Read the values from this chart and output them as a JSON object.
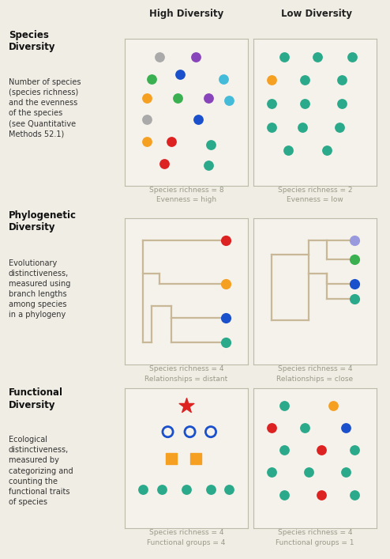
{
  "bg_color": "#f0ede4",
  "box_color": "#f5f2eb",
  "box_edge_color": "#bbbbaa",
  "header_high": "High Diversity",
  "header_low": "Low Diversity",
  "header_color": "#222222",
  "row1_title": "Species\nDiversity",
  "row1_desc": "Number of species\n(species richness)\nand the evenness\nof the species\n(see Quantitative\nMethods 52.1)",
  "row1_high_caption": "Species richness = 8\nEvenness = high",
  "row1_low_caption": "Species richness = 2\nEvenness = low",
  "row2_title": "Phylogenetic\nDiversity",
  "row2_desc": "Evolutionary\ndistinctiveness,\nmeasured using\nbranch lengths\namong species\nin a phylogeny",
  "row2_high_caption": "Species richness = 4\nRelationships = distant",
  "row2_low_caption": "Species richness = 4\nRelationships = close",
  "row3_title": "Functional\nDiversity",
  "row3_desc": "Ecological\ndistinctiveness,\nmeasured by\ncategorizing and\ncounting the\nfunctional traits\nof species",
  "row3_high_caption": "Species richness = 4\nFunctional groups = 4",
  "row3_low_caption": "Species richness = 4\nFunctional groups = 1",
  "teal": "#2aaa8a",
  "orange": "#f5a020",
  "red": "#dd2222",
  "blue": "#1a50cc",
  "green": "#3ab050",
  "purple": "#8844bb",
  "gray": "#aaaaaa",
  "light_blue": "#44bbd8",
  "lilac": "#9999dd",
  "caption_color": "#999988",
  "divider_color": "#cccc99",
  "phylo_color": "#c8b898"
}
